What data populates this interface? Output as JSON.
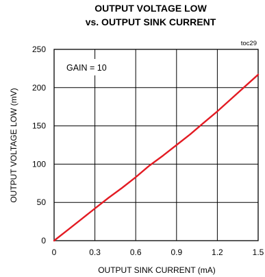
{
  "chart_data": {
    "type": "line",
    "title_lines": [
      "OUTPUT VOLTAGE LOW",
      "vs. OUTPUT SINK CURRENT"
    ],
    "tag": "toc29",
    "annotation": "GAIN = 10",
    "xlabel": "OUTPUT SINK CURRENT (mA)",
    "ylabel": "OUTPUT VOLTAGE LOW (mV)",
    "xlim": [
      0,
      1.5
    ],
    "ylim": [
      0,
      250
    ],
    "xticks": [
      "0",
      "0.3",
      "0.6",
      "0.9",
      "1.2",
      "1.5"
    ],
    "yticks": [
      "0",
      "50",
      "100",
      "150",
      "200",
      "250"
    ],
    "grid": true,
    "series": [
      {
        "color": "#e31b23",
        "x": [
          0,
          0.1,
          0.2,
          0.3,
          0.4,
          0.5,
          0.6,
          0.7,
          0.8,
          0.9,
          1.0,
          1.1,
          1.2,
          1.3,
          1.4,
          1.5
        ],
        "y": [
          0,
          14,
          28,
          42,
          56,
          69,
          83,
          98,
          111,
          125,
          139,
          154,
          169,
          185,
          201,
          217
        ]
      }
    ]
  }
}
